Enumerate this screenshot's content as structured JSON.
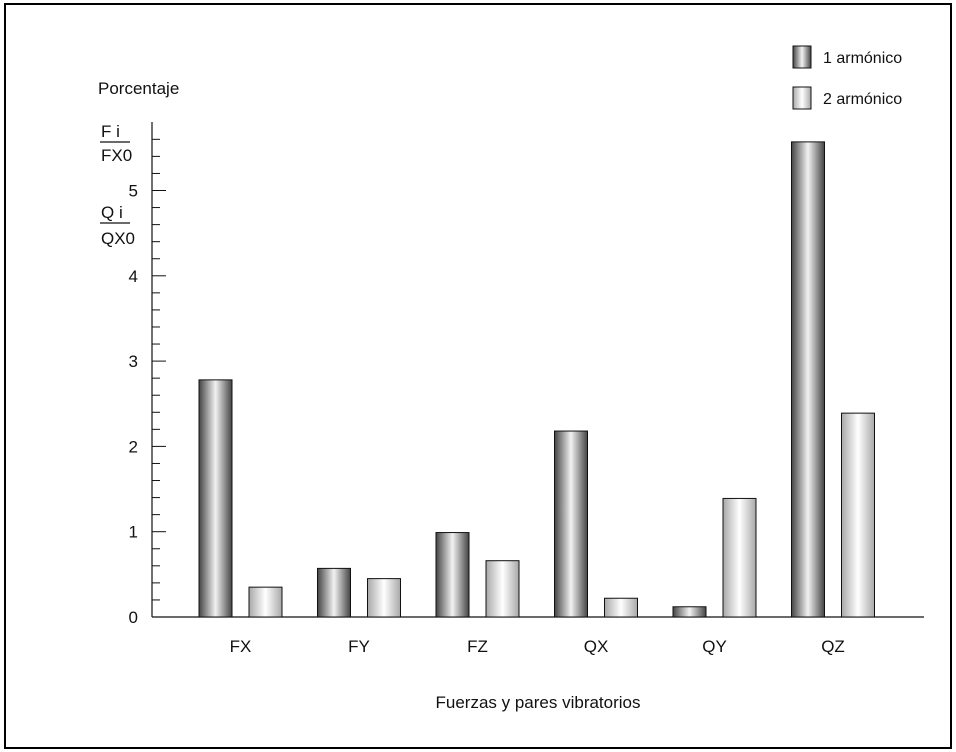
{
  "chart_data": {
    "type": "bar",
    "categories": [
      "FX",
      "FY",
      "FZ",
      "QX",
      "QY",
      "QZ"
    ],
    "series": [
      {
        "name": "1 armónico",
        "values": [
          2.78,
          0.57,
          0.99,
          2.18,
          0.12,
          5.57
        ]
      },
      {
        "name": "2 armónico",
        "values": [
          0.35,
          0.45,
          0.66,
          0.22,
          1.39,
          2.39
        ]
      }
    ],
    "ylabel": "Porcentaje",
    "ylabel_fractions": [
      {
        "num": "F i",
        "den": "FX0"
      },
      {
        "num": "Q i",
        "den": "QX0"
      }
    ],
    "xlabel": "Fuerzas y pares vibratorios",
    "yticks": [
      0,
      1,
      2,
      3,
      4,
      5
    ],
    "ylim": [
      0,
      5.6
    ],
    "grid": false,
    "legend_position": "top-right"
  },
  "colors": {
    "series1_dark": "#444444",
    "series1_light": "#f2f2f2",
    "series2_dark": "#a8a8a8",
    "series2_light": "#ffffff"
  }
}
